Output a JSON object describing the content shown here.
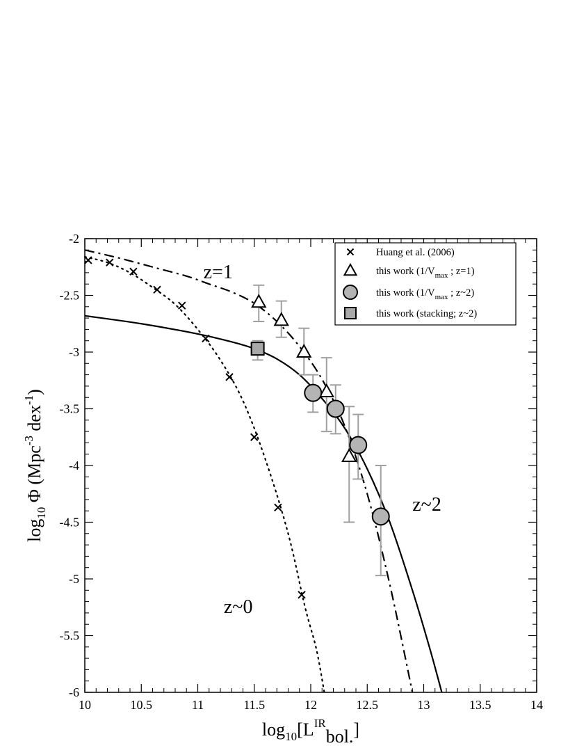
{
  "chart_data": {
    "type": "scatter",
    "xlabel": "log10[L^IR bol.]",
    "ylabel": "log10 Φ (Mpc^-3 dex^-1)",
    "xlim": [
      10,
      14
    ],
    "ylim": [
      -6,
      -2
    ],
    "xticks": [
      "10",
      "10.5",
      "11",
      "11.5",
      "12",
      "12.5",
      "13",
      "13.5",
      "14"
    ],
    "yticks": [
      "-2",
      "-2.5",
      "-3",
      "-3.5",
      "-4",
      "-4.5",
      "-5",
      "-5.5",
      "-6"
    ],
    "grid": false,
    "legend_position": "top-right",
    "axis_labels": {
      "x": {
        "base": "log",
        "sub1": "10",
        "open": "[L",
        "sup": "IR",
        "sub2": "bol.",
        "close": "]"
      },
      "y": {
        "base": "log",
        "sub": "10",
        "phi": " Φ  (Mpc",
        "sup1": "-3",
        "mid": " dex",
        "sup2": "-1",
        "close": ")"
      }
    },
    "legend": [
      {
        "marker": "cross",
        "label": "Huang et al. (2006)"
      },
      {
        "marker": "triangle",
        "label_pre": "this work (1/V",
        "label_sub": "max",
        "label_post": " ;  z=1)"
      },
      {
        "marker": "circle",
        "label_pre": "this work (1/V",
        "label_sub": "max",
        "label_post": " ;  z~2)"
      },
      {
        "marker": "square",
        "label": "this work (stacking; z~2)"
      }
    ],
    "annotations": [
      {
        "text": "z=1",
        "x": 11.05,
        "y": -2.35
      },
      {
        "text": "z~2",
        "x": 12.9,
        "y": -4.4
      },
      {
        "text": "z~0",
        "x": 11.23,
        "y": -5.3
      }
    ],
    "series": [
      {
        "name": "Huang et al. (2006)",
        "marker": "cross",
        "points": [
          {
            "x": 10.03,
            "y": -2.19
          },
          {
            "x": 10.22,
            "y": -2.21
          },
          {
            "x": 10.43,
            "y": -2.29
          },
          {
            "x": 10.64,
            "y": -2.45
          },
          {
            "x": 10.86,
            "y": -2.59
          },
          {
            "x": 11.07,
            "y": -2.88
          },
          {
            "x": 11.28,
            "y": -3.22
          },
          {
            "x": 11.5,
            "y": -3.75
          },
          {
            "x": 11.71,
            "y": -4.37
          },
          {
            "x": 11.92,
            "y": -5.14
          }
        ]
      },
      {
        "name": "this work (1/Vmax; z=1)",
        "marker": "triangle",
        "points": [
          {
            "x": 11.54,
            "y": -2.56,
            "lo": -2.73,
            "hi": -2.41
          },
          {
            "x": 11.74,
            "y": -2.72,
            "lo": -2.87,
            "hi": -2.55
          },
          {
            "x": 11.94,
            "y": -3.0,
            "lo": -3.2,
            "hi": -2.79
          },
          {
            "x": 12.14,
            "y": -3.35,
            "lo": -3.7,
            "hi": -3.05
          },
          {
            "x": 12.34,
            "y": -3.92,
            "lo": -4.5,
            "hi": -3.48
          }
        ]
      },
      {
        "name": "this work (1/Vmax; z~2)",
        "marker": "circle",
        "points": [
          {
            "x": 12.02,
            "y": -3.36,
            "lo": -3.53,
            "hi": -3.2
          },
          {
            "x": 12.22,
            "y": -3.5,
            "lo": -3.72,
            "hi": -3.29
          },
          {
            "x": 12.42,
            "y": -3.82,
            "lo": -4.12,
            "hi": -3.55
          },
          {
            "x": 12.62,
            "y": -4.45,
            "lo": -4.97,
            "hi": -4.0
          }
        ]
      },
      {
        "name": "this work (stacking; z~2)",
        "marker": "square",
        "points": [
          {
            "x": 11.53,
            "y": -2.97,
            "lo": -3.07,
            "hi": -2.9
          }
        ]
      }
    ],
    "curves": [
      {
        "id": "z~0 fit",
        "style": "dotted",
        "points": [
          [
            10,
            -2.16
          ],
          [
            10.2,
            -2.21
          ],
          [
            10.4,
            -2.3
          ],
          [
            10.6,
            -2.43
          ],
          [
            10.8,
            -2.58
          ],
          [
            11,
            -2.8
          ],
          [
            11.2,
            -3.07
          ],
          [
            11.4,
            -3.43
          ],
          [
            11.6,
            -3.95
          ],
          [
            11.8,
            -4.6
          ],
          [
            11.95,
            -5.25
          ],
          [
            12.05,
            -5.62
          ],
          [
            12.12,
            -6.0
          ]
        ]
      },
      {
        "id": "z=1 fit",
        "style": "dash-dot",
        "points": [
          [
            10,
            -2.1
          ],
          [
            10.3,
            -2.17
          ],
          [
            10.6,
            -2.25
          ],
          [
            10.9,
            -2.33
          ],
          [
            11.1,
            -2.4
          ],
          [
            11.3,
            -2.47
          ],
          [
            11.5,
            -2.57
          ],
          [
            11.7,
            -2.73
          ],
          [
            11.9,
            -2.95
          ],
          [
            12.1,
            -3.24
          ],
          [
            12.3,
            -3.65
          ],
          [
            12.5,
            -4.25
          ],
          [
            12.7,
            -5.05
          ],
          [
            12.9,
            -6.0
          ]
        ]
      },
      {
        "id": "z~2 fit",
        "style": "solid",
        "points": [
          [
            10,
            -2.68
          ],
          [
            10.5,
            -2.75
          ],
          [
            11,
            -2.84
          ],
          [
            11.3,
            -2.91
          ],
          [
            11.5,
            -2.97
          ],
          [
            11.7,
            -3.06
          ],
          [
            11.9,
            -3.2
          ],
          [
            12.1,
            -3.41
          ],
          [
            12.3,
            -3.67
          ],
          [
            12.5,
            -4.03
          ],
          [
            12.7,
            -4.5
          ],
          [
            12.9,
            -5.1
          ],
          [
            13.05,
            -5.6
          ],
          [
            13.16,
            -6.0
          ]
        ]
      }
    ]
  }
}
